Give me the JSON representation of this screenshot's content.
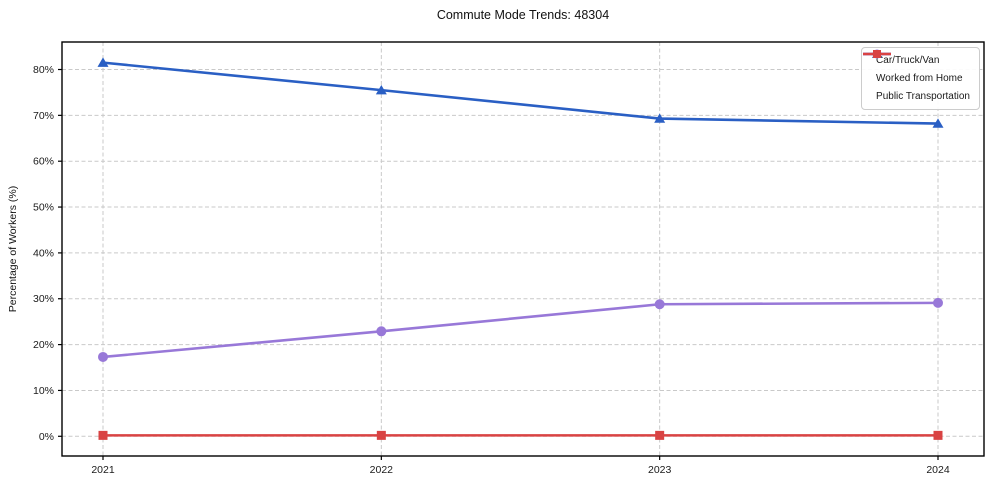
{
  "chart_data": {
    "type": "line",
    "title": "Commute Mode Trends: 48304",
    "xlabel": "",
    "ylabel": "Percentage of Workers (%)",
    "categories": [
      "2021",
      "2022",
      "2023",
      "2024"
    ],
    "series": [
      {
        "name": "Car/Truck/Van",
        "color": "#2a5fc4",
        "marker": "triangle",
        "values": [
          81.5,
          75.5,
          69.3,
          68.2
        ]
      },
      {
        "name": "Worked from Home",
        "color": "#9878d8",
        "marker": "circle",
        "values": [
          17.3,
          22.9,
          28.8,
          29.1
        ]
      },
      {
        "name": "Public Transportation",
        "color": "#d94343",
        "marker": "square",
        "values": [
          0.2,
          0.2,
          0.2,
          0.2
        ]
      }
    ],
    "yticks": {
      "values": [
        0,
        10,
        20,
        30,
        40,
        50,
        60,
        70,
        80
      ],
      "labels": [
        "0%",
        "10%",
        "20%",
        "30%",
        "40%",
        "50%",
        "60%",
        "70%",
        "80%"
      ]
    },
    "ylim": [
      -4.3,
      86
    ],
    "grid": "dashed",
    "legend_position": "upper-right",
    "colors": {
      "grid": "#c9c9c9",
      "spine": "#000000",
      "tick_text": "#1a1a1a",
      "background": "#ffffff"
    }
  }
}
